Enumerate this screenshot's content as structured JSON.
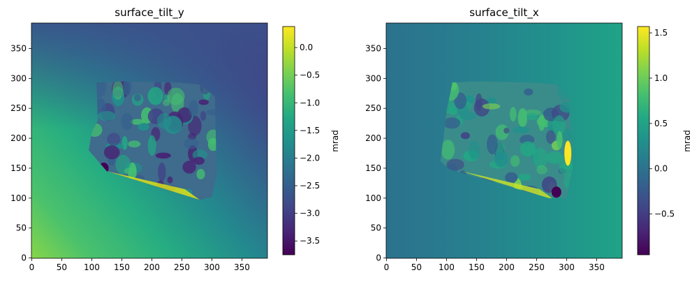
{
  "chart_data": [
    {
      "type": "heatmap",
      "title": "surface_tilt_y",
      "xticks": [
        0,
        50,
        100,
        150,
        200,
        250,
        300,
        350
      ],
      "yticks": [
        0,
        50,
        100,
        150,
        200,
        250,
        300,
        350
      ],
      "xlim": [
        -0.5,
        392.5
      ],
      "ylim": [
        392.5,
        -0.5
      ],
      "y_inverted": true,
      "colormap": "viridis",
      "colorbar": {
        "label": "mrad",
        "vmin": -3.75,
        "vmax": 0.38,
        "ticks": [
          0.0,
          -0.5,
          -1.0,
          -1.5,
          -2.0,
          -2.5,
          -3.0,
          -3.5
        ],
        "tick_labels": [
          "0.0",
          "−0.5",
          "−1.0",
          "−1.5",
          "−2.0",
          "−2.5",
          "−3.0",
          "−3.5"
        ]
      },
      "background": "linear gradient from about -0.5 mrad (bottom-left) to about -3.0 mrad (top and right)",
      "region_polygon": [
        [
          95,
          180
        ],
        [
          125,
          145
        ],
        [
          280,
          97
        ],
        [
          300,
          102
        ],
        [
          308,
          140
        ],
        [
          305,
          270
        ],
        [
          278,
          290
        ],
        [
          245,
          293
        ],
        [
          150,
          295
        ],
        [
          108,
          293
        ],
        [
          110,
          230
        ],
        [
          100,
          210
        ]
      ]
    },
    {
      "type": "heatmap",
      "title": "surface_tilt_x",
      "xticks": [
        0,
        50,
        100,
        150,
        200,
        250,
        300,
        350
      ],
      "yticks": [
        0,
        50,
        100,
        150,
        200,
        250,
        300,
        350
      ],
      "xlim": [
        -0.5,
        392.5
      ],
      "ylim": [
        392.5,
        -0.5
      ],
      "y_inverted": true,
      "colormap": "viridis",
      "colorbar": {
        "label": "mrad",
        "vmin": -0.95,
        "vmax": 1.57,
        "ticks": [
          1.5,
          1.0,
          0.5,
          0.0,
          -0.5
        ],
        "tick_labels": [
          "1.5",
          "1.0",
          "0.5",
          "0.0",
          "−0.5"
        ]
      },
      "background": "linear gradient from about -0.1 mrad (left) to about 0.6 mrad (right)",
      "region_polygon": [
        [
          90,
          162
        ],
        [
          105,
          148
        ],
        [
          270,
          100
        ],
        [
          300,
          100
        ],
        [
          310,
          150
        ],
        [
          305,
          265
        ],
        [
          282,
          290
        ],
        [
          240,
          293
        ],
        [
          150,
          295
        ],
        [
          110,
          293
        ],
        [
          100,
          245
        ],
        [
          95,
          200
        ]
      ]
    }
  ]
}
